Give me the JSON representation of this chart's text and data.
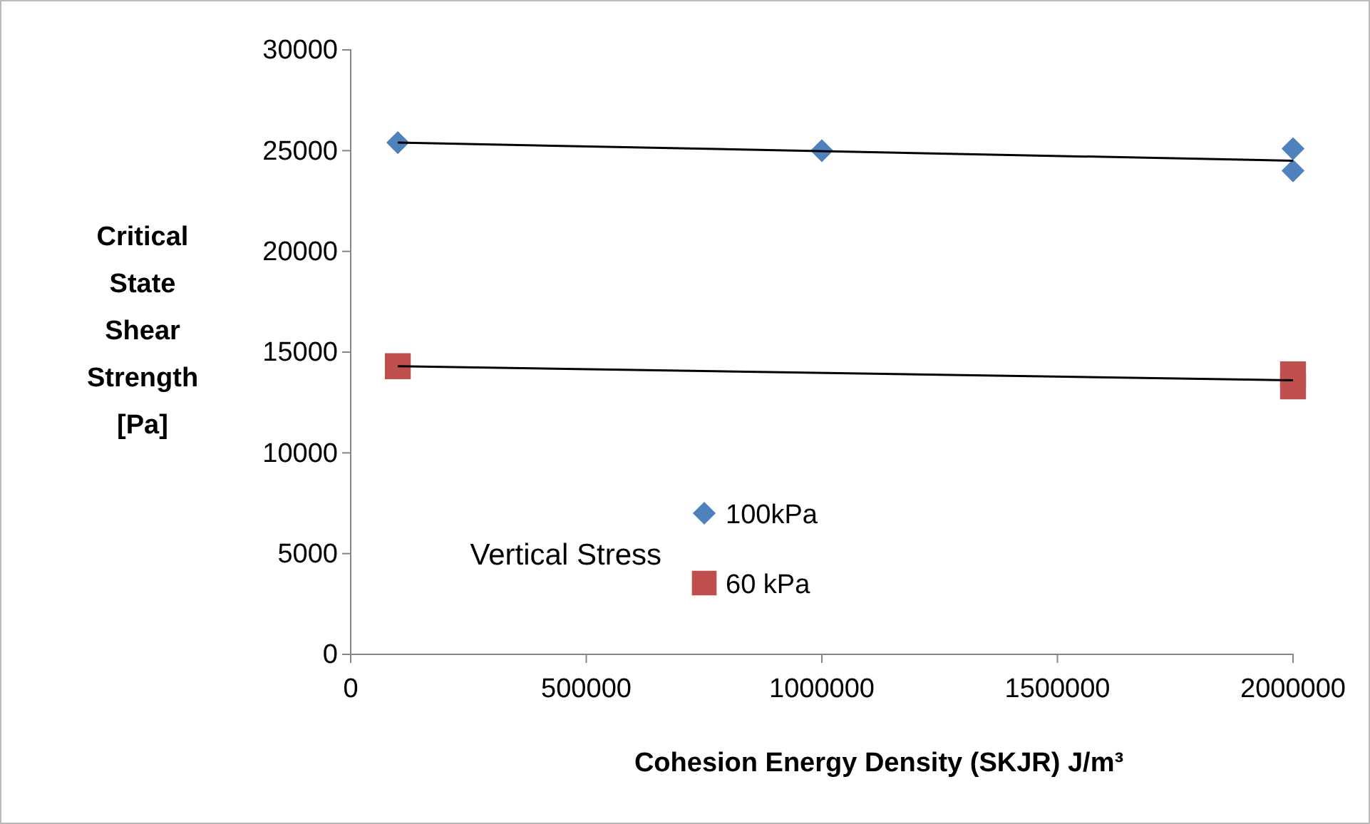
{
  "chart_data": {
    "type": "scatter",
    "xlabel": "Cohesion Energy Density (SKJR) J/m³",
    "ylabel": "Critical State Shear Strength [Pa]",
    "legend_title": "Vertical Stress",
    "legend": "bottom",
    "grid": false,
    "xlim": [
      0,
      2000000
    ],
    "xticks": [
      0,
      500000,
      1000000,
      1500000,
      2000000
    ],
    "ylim": [
      0,
      30000
    ],
    "yticks": [
      0,
      5000,
      10000,
      15000,
      20000,
      25000,
      30000
    ],
    "series": [
      {
        "name": "100kPa",
        "marker": "diamond",
        "color": "#4f81bd",
        "x": [
          100000,
          1000000,
          2000000,
          2000000
        ],
        "values": [
          25400,
          25000,
          25100,
          24000
        ]
      },
      {
        "name": "60 kPa",
        "marker": "square",
        "color": "#c0504d",
        "x": [
          100000,
          2000000,
          2000000
        ],
        "values": [
          14300,
          13900,
          13300
        ]
      },
      {
        "type": "line",
        "marker": "none",
        "color": "#000000",
        "x": [
          100000,
          2000000
        ],
        "values": [
          25400,
          24500
        ]
      },
      {
        "type": "line",
        "marker": "none",
        "color": "#000000",
        "x": [
          100000,
          2000000
        ],
        "values": [
          14300,
          13600
        ]
      }
    ]
  }
}
